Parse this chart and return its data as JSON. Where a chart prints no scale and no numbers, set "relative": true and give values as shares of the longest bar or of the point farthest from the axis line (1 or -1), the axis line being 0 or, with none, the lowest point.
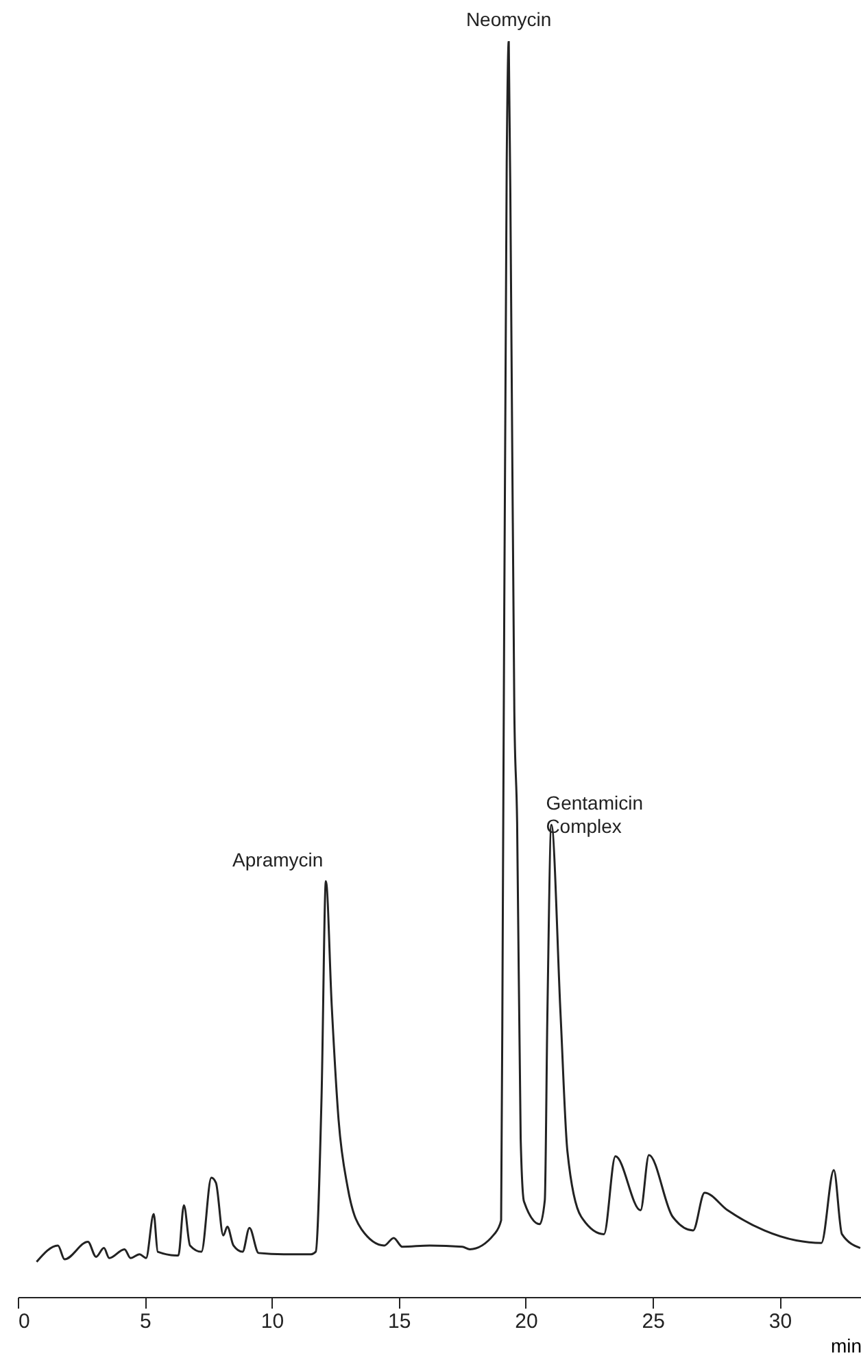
{
  "chart_data": {
    "type": "line",
    "relative": true,
    "xlabel": "min",
    "xlim": [
      0,
      33.2
    ],
    "xticks": [
      0,
      5,
      10,
      15,
      20,
      25,
      30
    ],
    "grid": false,
    "tick_labels": "x",
    "annotations": [
      {
        "text": "Apramycin",
        "x": 12.13,
        "y": 0.331
      },
      {
        "text": "Neomycin",
        "x": 19.33,
        "y": 1
      },
      {
        "text": "Gentamicin Complex",
        "x": 21.01,
        "y": 0.376
      }
    ],
    "series": [
      {
        "color": "#222222",
        "x": [
          0.74,
          1.58,
          1.84,
          2.76,
          3.08,
          3.39,
          3.6,
          4.2,
          4.44,
          4.79,
          5.05,
          5.35,
          5.51,
          6.32,
          6.54,
          6.78,
          7.23,
          7.62,
          7.8,
          8.09,
          8.25,
          8.49,
          8.85,
          9.12,
          9.48,
          10.47,
          11.55,
          11.73,
          11.96,
          12.13,
          12.36,
          12.63,
          12.99,
          13.53,
          14.43,
          14.8,
          15.14,
          16.22,
          17.5,
          17.8,
          18.76,
          19.03,
          19.1,
          19.25,
          19.33,
          19.42,
          19.55,
          19.66,
          19.8,
          19.93,
          20.55,
          20.75,
          20.85,
          21.01,
          21.37,
          21.64,
          22.18,
          23.08,
          23.53,
          24.52,
          24.85,
          25.78,
          26.59,
          27.04,
          27.95,
          29.39,
          30.65,
          31.64,
          32.13,
          32.45,
          33.17
        ],
        "values": [
          0.028,
          0.041,
          0.03,
          0.044,
          0.032,
          0.039,
          0.031,
          0.038,
          0.031,
          0.034,
          0.031,
          0.066,
          0.036,
          0.033,
          0.073,
          0.041,
          0.036,
          0.095,
          0.091,
          0.049,
          0.056,
          0.041,
          0.036,
          0.055,
          0.035,
          0.034,
          0.034,
          0.036,
          0.16,
          0.331,
          0.232,
          0.141,
          0.087,
          0.054,
          0.041,
          0.047,
          0.04,
          0.041,
          0.04,
          0.038,
          0.05,
          0.061,
          0.32,
          0.903,
          1,
          0.806,
          0.466,
          0.378,
          0.126,
          0.076,
          0.058,
          0.077,
          0.223,
          0.376,
          0.225,
          0.116,
          0.064,
          0.05,
          0.112,
          0.069,
          0.113,
          0.064,
          0.053,
          0.083,
          0.069,
          0.053,
          0.045,
          0.043,
          0.101,
          0.05,
          0.039
        ]
      }
    ]
  }
}
